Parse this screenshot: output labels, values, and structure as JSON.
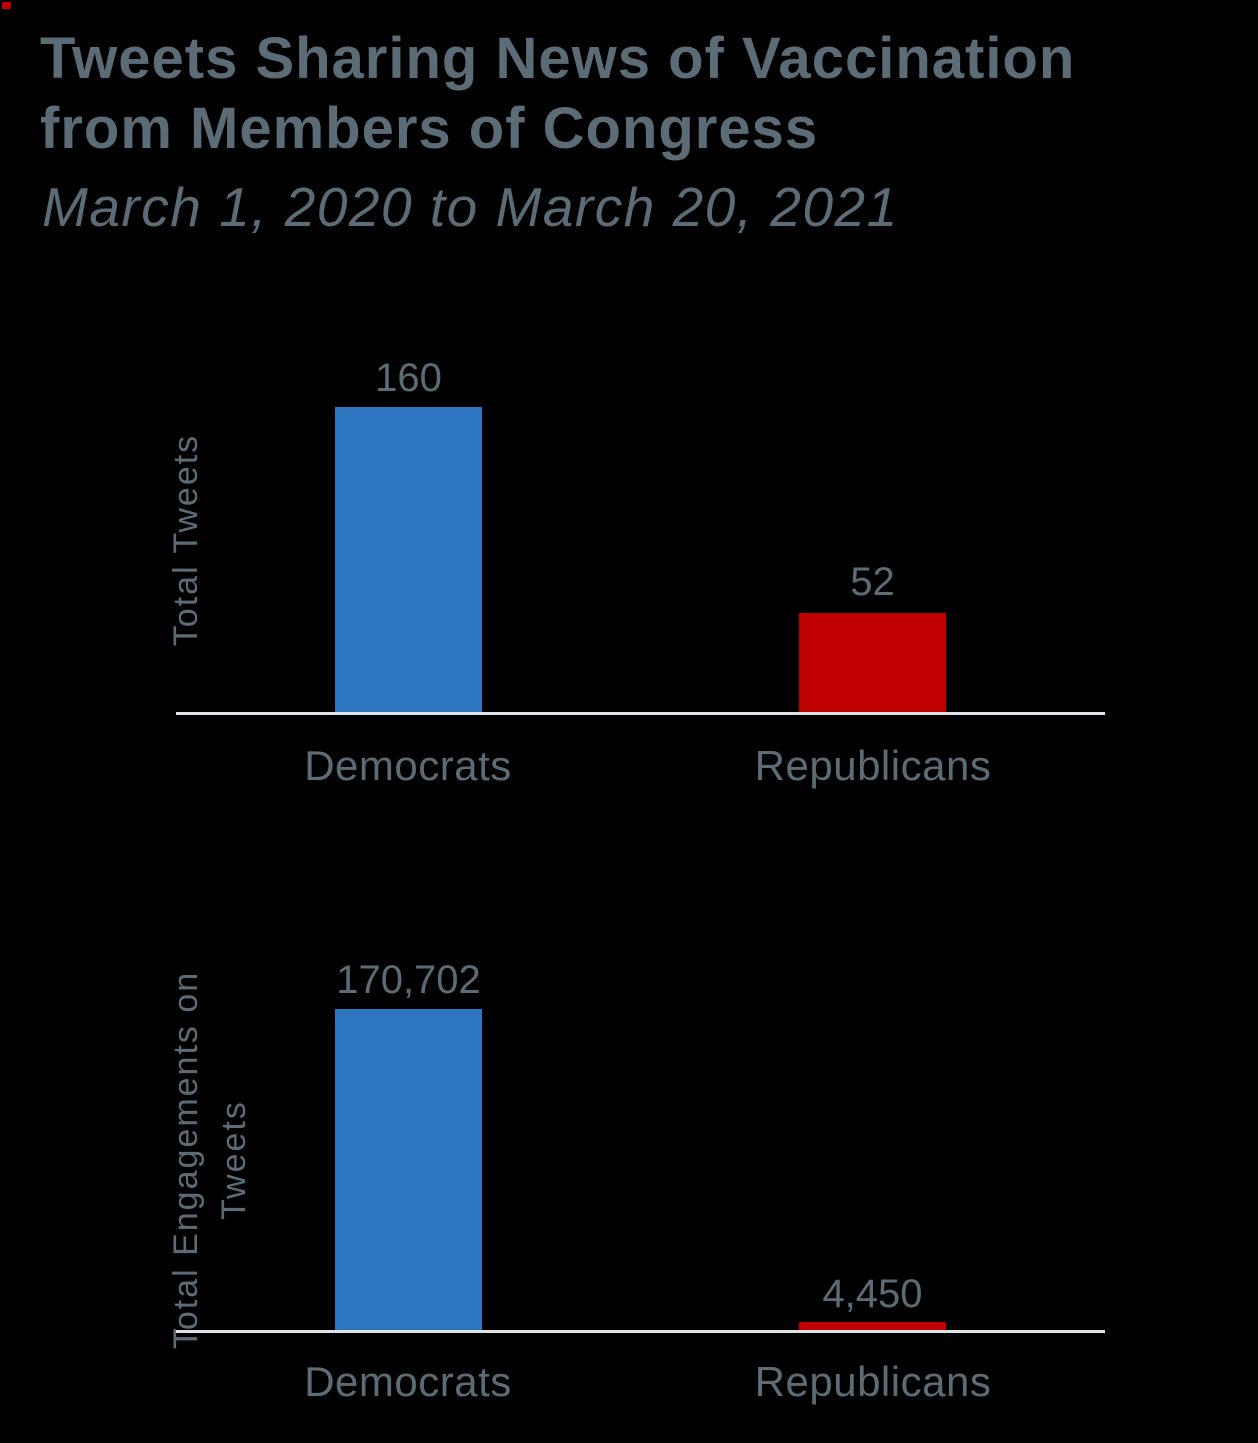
{
  "header": {
    "title_line1": "Tweets Sharing News of Vaccination",
    "title_line2": "from Members of Congress",
    "subtitle": "March 1, 2020 to March 20, 2021"
  },
  "colors": {
    "democrat_blue": "#2e75c0",
    "republican_red": "#c00000",
    "text_slate": "#5c6c76",
    "axis_line": "#dde2e6",
    "background": "#000000"
  },
  "chart_data": [
    {
      "type": "bar",
      "title": "Total Tweets by party",
      "ylabel": "Total Tweets",
      "ylabel_lines": [
        "Total Tweets"
      ],
      "xlabel": "",
      "categories": [
        "Democrats",
        "Republicans"
      ],
      "values": [
        160,
        52
      ],
      "value_labels": [
        "160",
        "52"
      ],
      "colors": [
        "#2e75c0",
        "#c00000"
      ],
      "ylim": [
        0,
        160
      ],
      "grid": false,
      "legend": "none"
    },
    {
      "type": "bar",
      "title": "Total Engagements on Tweets by party",
      "ylabel": "Total Engagements on Tweets",
      "ylabel_lines": [
        "Total Engagements on",
        "Tweets"
      ],
      "xlabel": "",
      "categories": [
        "Democrats",
        "Republicans"
      ],
      "values": [
        170702,
        4450
      ],
      "value_labels": [
        "170,702",
        "4,450"
      ],
      "colors": [
        "#2e75c0",
        "#c00000"
      ],
      "ylim": [
        0,
        170702
      ],
      "grid": false,
      "legend": "none"
    }
  ]
}
